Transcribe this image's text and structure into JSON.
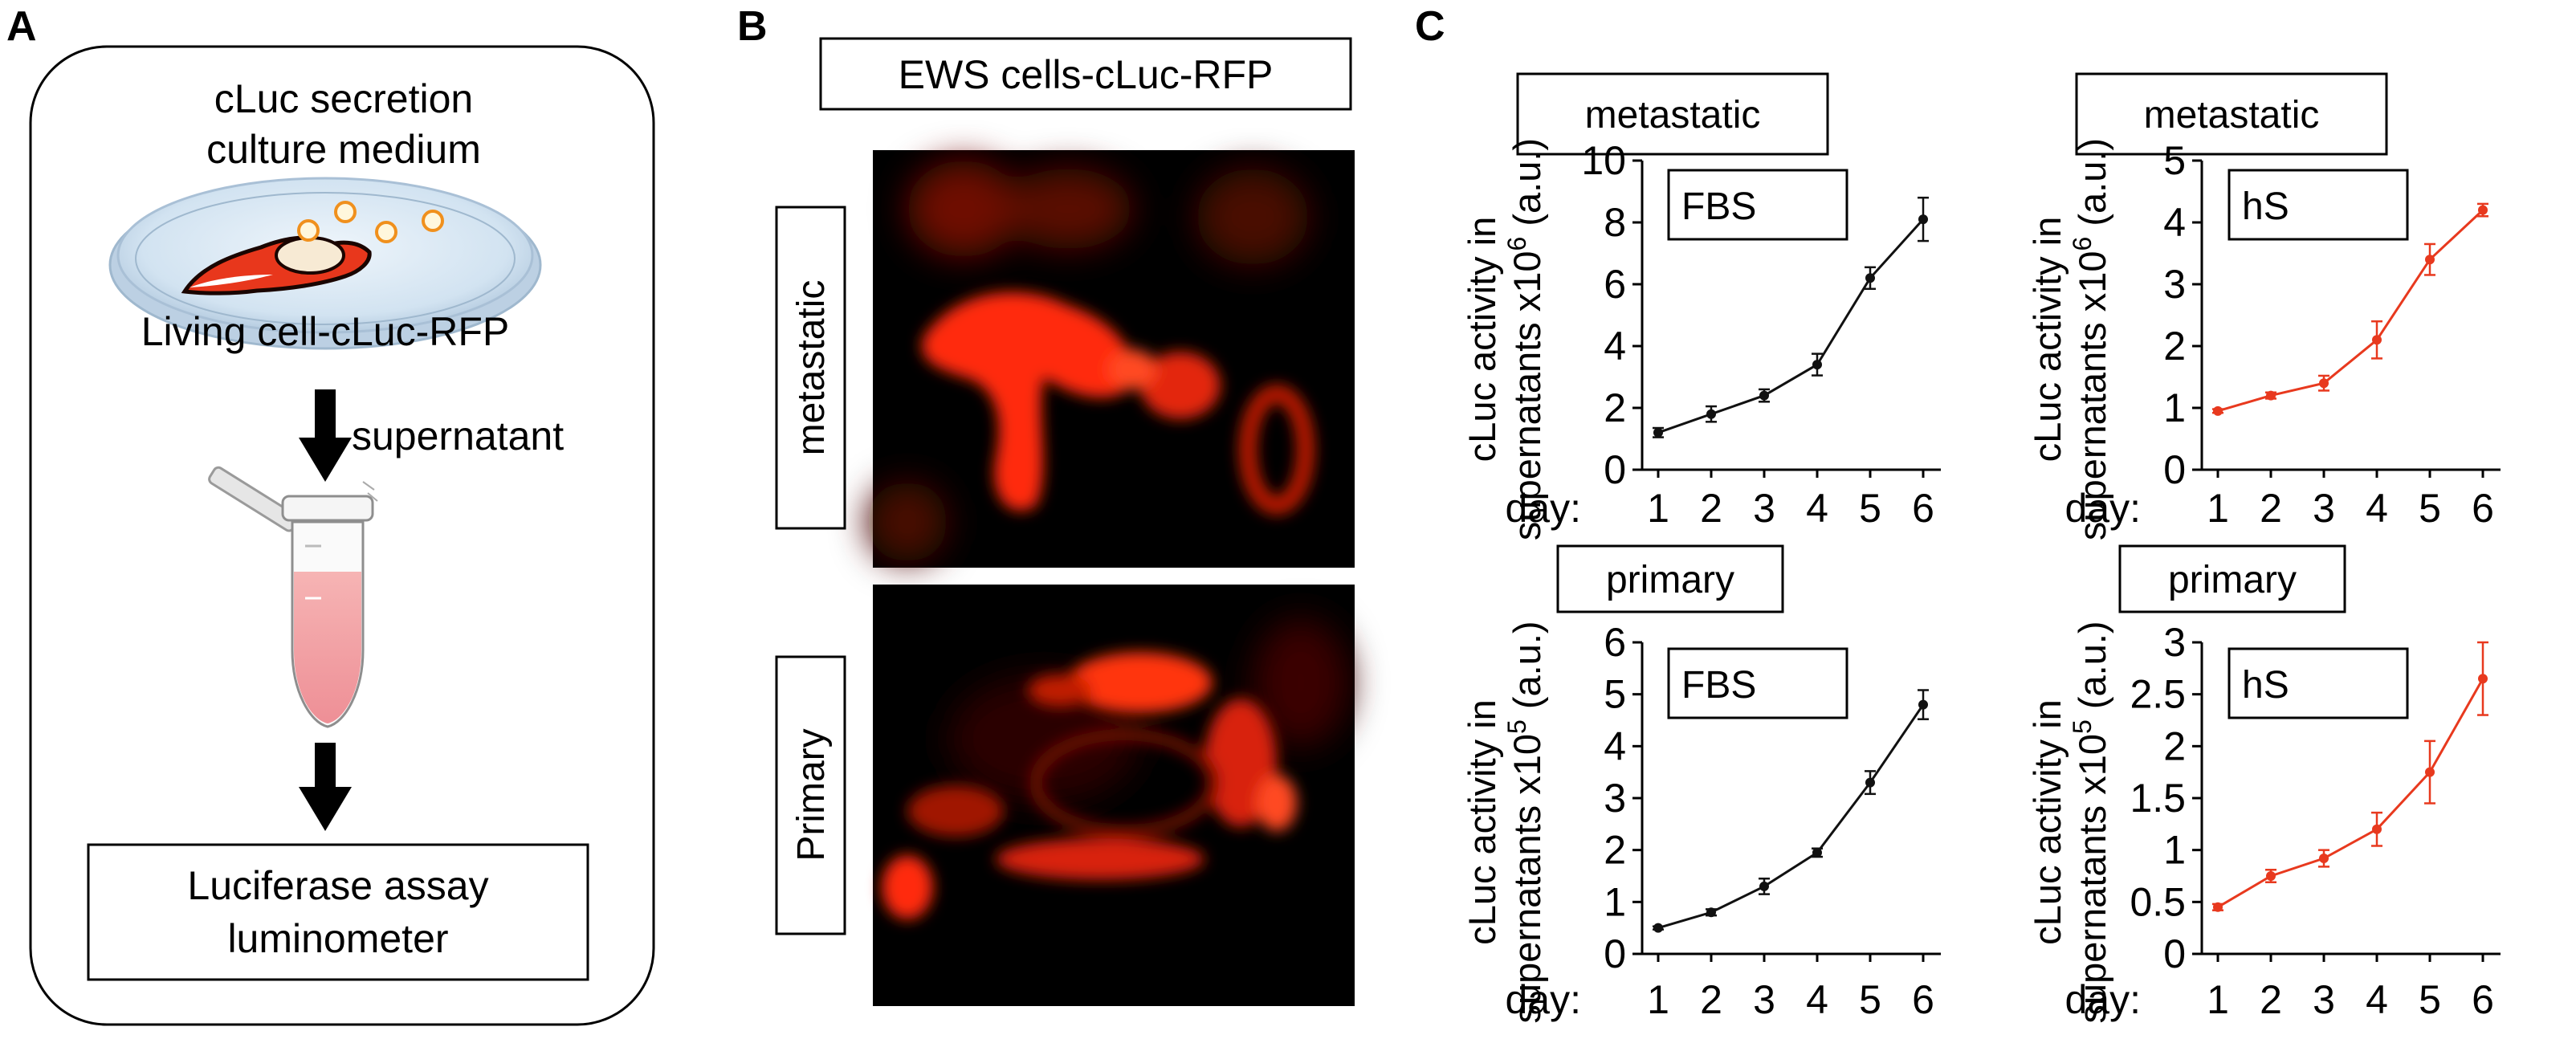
{
  "panels": {
    "a": {
      "letter": "A",
      "medium_line1": "cLuc secretion",
      "medium_line2": "culture medium",
      "cell_label": "Living cell-cLuc-RFP",
      "step_label": "supernatant",
      "assay_line1": "Luciferase assay",
      "assay_line2": "luminometer"
    },
    "b": {
      "letter": "B",
      "title": "EWS cells-cLuc-RFP",
      "rows": [
        {
          "label": "metastatic"
        },
        {
          "label": "Primary"
        }
      ]
    },
    "c": {
      "letter": "C"
    }
  },
  "colors": {
    "black_series": "#111111",
    "red_series": "#e8391e",
    "rfp_signal": "#ff2a0a",
    "dish_blue": "#cfe2f2"
  },
  "chart_data": [
    {
      "type": "line",
      "panel": "C",
      "group": "metastatic",
      "condition": "FBS",
      "ylabel_line1": "cLuc activity in",
      "ylabel_line2": "supernatants x10",
      "ylabel_exp": "6",
      "ylabel_unit": "(a.u.)",
      "xlabel": "day:",
      "x": [
        1,
        2,
        3,
        4,
        5,
        6
      ],
      "x_ticks": [
        "1",
        "2",
        "3",
        "4",
        "5",
        "6"
      ],
      "ylim": [
        0,
        10
      ],
      "y_ticks": [
        "0",
        "2",
        "4",
        "6",
        "8",
        "10"
      ],
      "y_tick_values": [
        0,
        2,
        4,
        6,
        8,
        10
      ],
      "color": "#111111",
      "series": [
        {
          "values": [
            1.2,
            1.8,
            2.4,
            3.4,
            6.2,
            8.1
          ],
          "errors": [
            0.15,
            0.25,
            0.2,
            0.35,
            0.35,
            0.7
          ]
        }
      ]
    },
    {
      "type": "line",
      "panel": "C",
      "group": "metastatic",
      "condition": "hS",
      "ylabel_line1": "cLuc activity in",
      "ylabel_line2": "supernatants x10",
      "ylabel_exp": "6",
      "ylabel_unit": "(a.u.)",
      "xlabel": "day:",
      "x": [
        1,
        2,
        3,
        4,
        5,
        6
      ],
      "x_ticks": [
        "1",
        "2",
        "3",
        "4",
        "5",
        "6"
      ],
      "ylim": [
        0,
        5
      ],
      "y_ticks": [
        "0",
        "1",
        "2",
        "3",
        "4",
        "5"
      ],
      "y_tick_values": [
        0,
        1,
        2,
        3,
        4,
        5
      ],
      "color": "#e8391e",
      "series": [
        {
          "values": [
            0.95,
            1.2,
            1.4,
            2.1,
            3.4,
            4.2
          ],
          "errors": [
            0.03,
            0.05,
            0.12,
            0.3,
            0.25,
            0.1
          ]
        }
      ]
    },
    {
      "type": "line",
      "panel": "C",
      "group": "primary",
      "condition": "FBS",
      "ylabel_line1": "cLuc activity in",
      "ylabel_line2": "supernatants x10",
      "ylabel_exp": "5",
      "ylabel_unit": "(a.u.)",
      "xlabel": "day:",
      "x": [
        1,
        2,
        3,
        4,
        5,
        6
      ],
      "x_ticks": [
        "1",
        "2",
        "3",
        "4",
        "5",
        "6"
      ],
      "ylim": [
        0,
        6
      ],
      "y_ticks": [
        "0",
        "1",
        "2",
        "3",
        "4",
        "5",
        "6"
      ],
      "y_tick_values": [
        0,
        1,
        2,
        3,
        4,
        5,
        6
      ],
      "color": "#111111",
      "series": [
        {
          "values": [
            0.5,
            0.8,
            1.3,
            1.95,
            3.3,
            4.8
          ],
          "errors": [
            0.03,
            0.06,
            0.15,
            0.08,
            0.22,
            0.28
          ]
        }
      ]
    },
    {
      "type": "line",
      "panel": "C",
      "group": "primary",
      "condition": "hS",
      "ylabel_line1": "cLuc activity in",
      "ylabel_line2": "supernatants x10",
      "ylabel_exp": "5",
      "ylabel_unit": "(a.u.)",
      "xlabel": "day:",
      "x": [
        1,
        2,
        3,
        4,
        5,
        6
      ],
      "x_ticks": [
        "1",
        "2",
        "3",
        "4",
        "5",
        "6"
      ],
      "ylim": [
        0,
        3
      ],
      "y_ticks": [
        "0",
        "0.5",
        "1",
        "1.5",
        "2",
        "2.5",
        "3"
      ],
      "y_tick_values": [
        0,
        0.5,
        1,
        1.5,
        2,
        2.5,
        3
      ],
      "color": "#e8391e",
      "series": [
        {
          "values": [
            0.45,
            0.75,
            0.92,
            1.2,
            1.75,
            2.65
          ],
          "errors": [
            0.03,
            0.06,
            0.08,
            0.16,
            0.3,
            0.35
          ]
        }
      ]
    }
  ]
}
